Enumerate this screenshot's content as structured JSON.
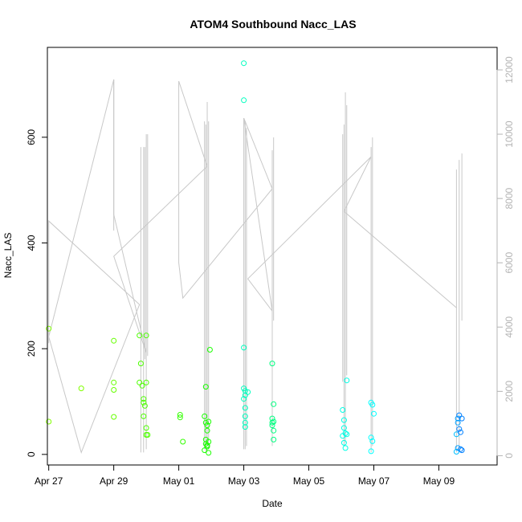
{
  "chart_data": {
    "type": "scatter",
    "title": "ATOM4 Southbound Nacc_LAS",
    "xlabel": "Date",
    "ylabel": "Nacc_LAS",
    "y2label": "",
    "xlim": [
      "2018-04-26T23:00",
      "2018-05-10T19:00"
    ],
    "x_ticks": [
      {
        "date": "2018-04-27",
        "label": "Apr 27"
      },
      {
        "date": "2018-04-29",
        "label": "Apr 29"
      },
      {
        "date": "2018-05-01",
        "label": "May 01"
      },
      {
        "date": "2018-05-03",
        "label": "May 03"
      },
      {
        "date": "2018-05-05",
        "label": "May 05"
      },
      {
        "date": "2018-05-07",
        "label": "May 07"
      },
      {
        "date": "2018-05-09",
        "label": "May 09"
      }
    ],
    "ylim": [
      -20,
      770
    ],
    "y_ticks": [
      0,
      200,
      400,
      600
    ],
    "y2lim": [
      -290,
      12700
    ],
    "y2_ticks": [
      0,
      2000,
      4000,
      6000,
      8000,
      10000,
      12000
    ],
    "grid": false,
    "legend": "none",
    "colors": {
      "trace": "#c8c8c8",
      "right_axis": "#b4b4b4",
      "early_points": "#80ff00",
      "mid_points": "#00ff40",
      "late_points": "#00ffff",
      "last_points": "#0080ff"
    },
    "points": [
      {
        "x": "2018-04-27T00:00",
        "y": 238,
        "color": "#80ff00"
      },
      {
        "x": "2018-04-27T00:00",
        "y": 62,
        "color": "#80ff00"
      },
      {
        "x": "2018-04-28T00:00",
        "y": 125,
        "color": "#80ff00"
      },
      {
        "x": "2018-04-29T00:00",
        "y": 215,
        "color": "#66ff00"
      },
      {
        "x": "2018-04-29T00:00",
        "y": 136,
        "color": "#66ff00"
      },
      {
        "x": "2018-04-29T00:00",
        "y": 122,
        "color": "#66ff00"
      },
      {
        "x": "2018-04-29T00:00",
        "y": 71,
        "color": "#66ff00"
      },
      {
        "x": "2018-04-29T19:00",
        "y": 225,
        "color": "#4dff00"
      },
      {
        "x": "2018-04-29T19:00",
        "y": 136,
        "color": "#4dff00"
      },
      {
        "x": "2018-04-29T20:00",
        "y": 172,
        "color": "#4dff00"
      },
      {
        "x": "2018-04-29T21:00",
        "y": 130,
        "color": "#4dff00"
      },
      {
        "x": "2018-04-29T22:00",
        "y": 105,
        "color": "#4dff00"
      },
      {
        "x": "2018-04-29T22:00",
        "y": 98,
        "color": "#4dff00"
      },
      {
        "x": "2018-04-29T22:00",
        "y": 72,
        "color": "#4dff00"
      },
      {
        "x": "2018-04-29T23:00",
        "y": 92,
        "color": "#4dff00"
      },
      {
        "x": "2018-04-30T00:00",
        "y": 225,
        "color": "#4dff00"
      },
      {
        "x": "2018-04-30T00:00",
        "y": 136,
        "color": "#4dff00"
      },
      {
        "x": "2018-04-30T00:00",
        "y": 50,
        "color": "#4dff00"
      },
      {
        "x": "2018-04-30T00:00",
        "y": 37,
        "color": "#4dff00"
      },
      {
        "x": "2018-04-30T01:00",
        "y": 37,
        "color": "#4dff00"
      },
      {
        "x": "2018-05-01T01:00",
        "y": 75,
        "color": "#33ff00"
      },
      {
        "x": "2018-05-01T01:00",
        "y": 70,
        "color": "#33ff00"
      },
      {
        "x": "2018-05-01T03:00",
        "y": 24,
        "color": "#33ff00"
      },
      {
        "x": "2018-05-01T19:00",
        "y": 72,
        "color": "#1aff00"
      },
      {
        "x": "2018-05-01T19:00",
        "y": 8,
        "color": "#1aff00"
      },
      {
        "x": "2018-05-01T20:00",
        "y": 128,
        "color": "#1aff00"
      },
      {
        "x": "2018-05-01T20:00",
        "y": 60,
        "color": "#1aff00"
      },
      {
        "x": "2018-05-01T20:00",
        "y": 28,
        "color": "#1aff00"
      },
      {
        "x": "2018-05-01T20:00",
        "y": 20,
        "color": "#1aff00"
      },
      {
        "x": "2018-05-01T21:00",
        "y": 55,
        "color": "#1aff00"
      },
      {
        "x": "2018-05-01T21:00",
        "y": 45,
        "color": "#1aff00"
      },
      {
        "x": "2018-05-01T21:00",
        "y": 17,
        "color": "#1aff00"
      },
      {
        "x": "2018-05-01T21:00",
        "y": 15,
        "color": "#1aff00"
      },
      {
        "x": "2018-05-01T22:00",
        "y": 62,
        "color": "#1aff00"
      },
      {
        "x": "2018-05-01T22:00",
        "y": 24,
        "color": "#1aff00"
      },
      {
        "x": "2018-05-01T22:00",
        "y": 3,
        "color": "#1aff00"
      },
      {
        "x": "2018-05-01T23:00",
        "y": 198,
        "color": "#1aff00"
      },
      {
        "x": "2018-05-03T00:00",
        "y": 740,
        "color": "#00ffbf"
      },
      {
        "x": "2018-05-03T00:00",
        "y": 670,
        "color": "#00ffbf"
      },
      {
        "x": "2018-05-03T00:00",
        "y": 202,
        "color": "#00ffbf"
      },
      {
        "x": "2018-05-03T00:00",
        "y": 125,
        "color": "#00ffbf"
      },
      {
        "x": "2018-05-03T00:00",
        "y": 105,
        "color": "#00ffbf"
      },
      {
        "x": "2018-05-03T01:00",
        "y": 120,
        "color": "#00ffbf"
      },
      {
        "x": "2018-05-03T01:00",
        "y": 112,
        "color": "#00ffbf"
      },
      {
        "x": "2018-05-03T01:00",
        "y": 88,
        "color": "#00ffbf"
      },
      {
        "x": "2018-05-03T01:00",
        "y": 72,
        "color": "#00ffbf"
      },
      {
        "x": "2018-05-03T01:00",
        "y": 60,
        "color": "#00ffbf"
      },
      {
        "x": "2018-05-03T01:00",
        "y": 52,
        "color": "#00ffbf"
      },
      {
        "x": "2018-05-03T03:00",
        "y": 118,
        "color": "#00ffbf"
      },
      {
        "x": "2018-05-03T21:00",
        "y": 172,
        "color": "#00ff80"
      },
      {
        "x": "2018-05-03T21:00",
        "y": 68,
        "color": "#00ff80"
      },
      {
        "x": "2018-05-03T21:00",
        "y": 60,
        "color": "#00ff80"
      },
      {
        "x": "2018-05-03T21:00",
        "y": 55,
        "color": "#00ff80"
      },
      {
        "x": "2018-05-03T22:00",
        "y": 95,
        "color": "#00ff80"
      },
      {
        "x": "2018-05-03T22:00",
        "y": 62,
        "color": "#00ff80"
      },
      {
        "x": "2018-05-03T22:00",
        "y": 45,
        "color": "#00ff80"
      },
      {
        "x": "2018-05-03T22:00",
        "y": 28,
        "color": "#00ff80"
      },
      {
        "x": "2018-05-06T01:00",
        "y": 84,
        "color": "#00ffe6"
      },
      {
        "x": "2018-05-06T01:00",
        "y": 35,
        "color": "#00ffe6"
      },
      {
        "x": "2018-05-06T02:00",
        "y": 65,
        "color": "#00ffe6"
      },
      {
        "x": "2018-05-06T02:00",
        "y": 50,
        "color": "#00ffe6"
      },
      {
        "x": "2018-05-06T02:00",
        "y": 22,
        "color": "#00ffe6"
      },
      {
        "x": "2018-05-06T03:00",
        "y": 40,
        "color": "#00ffe6"
      },
      {
        "x": "2018-05-06T03:00",
        "y": 12,
        "color": "#00ffe6"
      },
      {
        "x": "2018-05-06T04:00",
        "y": 140,
        "color": "#00ffe6"
      },
      {
        "x": "2018-05-06T04:00",
        "y": 38,
        "color": "#00ffe6"
      },
      {
        "x": "2018-05-06T22:00",
        "y": 98,
        "color": "#00ffff"
      },
      {
        "x": "2018-05-06T22:00",
        "y": 32,
        "color": "#00ffff"
      },
      {
        "x": "2018-05-06T22:00",
        "y": 6,
        "color": "#00ffff"
      },
      {
        "x": "2018-05-06T23:00",
        "y": 94,
        "color": "#00ffff"
      },
      {
        "x": "2018-05-06T23:00",
        "y": 25,
        "color": "#00ffff"
      },
      {
        "x": "2018-05-07T00:00",
        "y": 77,
        "color": "#00ffff"
      },
      {
        "x": "2018-05-09T13:00",
        "y": 38,
        "color": "#00bfff"
      },
      {
        "x": "2018-05-09T13:00",
        "y": 5,
        "color": "#00bfff"
      },
      {
        "x": "2018-05-09T14:00",
        "y": 68,
        "color": "#00a0ff"
      },
      {
        "x": "2018-05-09T14:00",
        "y": 60,
        "color": "#00a0ff"
      },
      {
        "x": "2018-05-09T14:00",
        "y": 12,
        "color": "#00a0ff"
      },
      {
        "x": "2018-05-09T15:00",
        "y": 74,
        "color": "#0080ff"
      },
      {
        "x": "2018-05-09T15:00",
        "y": 48,
        "color": "#0080ff"
      },
      {
        "x": "2018-05-09T16:00",
        "y": 42,
        "color": "#0080ff"
      },
      {
        "x": "2018-05-09T16:00",
        "y": 10,
        "color": "#0080ff"
      },
      {
        "x": "2018-05-09T17:00",
        "y": 68,
        "color": "#0080ff"
      },
      {
        "x": "2018-05-09T17:00",
        "y": 8,
        "color": "#0080ff"
      }
    ],
    "secondary_trace": [
      {
        "x": "2018-04-27T00:00",
        "y2": 3500
      },
      {
        "x": "2018-04-27T00:00",
        "y2": 7300
      },
      {
        "x": "2018-04-29T19:00",
        "y2": 4700
      },
      {
        "x": "2018-04-28T00:00",
        "y2": 100
      },
      {
        "x": "2018-04-27T00:00",
        "y2": 3700
      },
      {
        "x": "2018-04-29T00:00",
        "y2": 11700
      },
      {
        "x": "2018-04-29T00:00",
        "y2": 10200
      },
      {
        "x": "2018-04-29T00:00",
        "y2": 7500
      },
      {
        "x": "2018-04-30T00:00",
        "y2": 3200
      },
      {
        "x": "2018-04-29T00:00",
        "y2": 6200
      },
      {
        "x": "2018-05-01T21:00",
        "y2": 9000
      },
      {
        "x": "2018-05-01T00:00",
        "y2": 11650
      },
      {
        "x": "2018-05-01T00:00",
        "y2": 6000
      },
      {
        "x": "2018-05-01T03:00",
        "y2": 4900
      },
      {
        "x": "2018-05-03T21:00",
        "y2": 8300
      },
      {
        "x": "2018-05-03T00:00",
        "y2": 10500
      },
      {
        "x": "2018-05-03T21:00",
        "y2": 4500
      },
      {
        "x": "2018-05-03T03:00",
        "y2": 5500
      },
      {
        "x": "2018-05-06T22:00",
        "y2": 9300
      },
      {
        "x": "2018-05-06T02:00",
        "y2": 7600
      },
      {
        "x": "2018-05-09T13:00",
        "y2": 4600
      }
    ],
    "spikes": [
      {
        "x": "2018-04-29T00:00",
        "y2_min": 7000,
        "y2_max": 11700
      },
      {
        "x": "2018-04-29T20:00",
        "y2_min": 100,
        "y2_max": 9600
      },
      {
        "x": "2018-04-29T22:00",
        "y2_min": 100,
        "y2_max": 9600
      },
      {
        "x": "2018-04-29T23:00",
        "y2_min": 3000,
        "y2_max": 9600
      },
      {
        "x": "2018-04-30T00:00",
        "y2_min": 200,
        "y2_max": 10000
      },
      {
        "x": "2018-04-30T01:00",
        "y2_min": 3100,
        "y2_max": 10000
      },
      {
        "x": "2018-05-01T19:00",
        "y2_min": 200,
        "y2_max": 10400
      },
      {
        "x": "2018-05-01T20:00",
        "y2_min": 100,
        "y2_max": 10300
      },
      {
        "x": "2018-05-01T21:00",
        "y2_min": 300,
        "y2_max": 11000
      },
      {
        "x": "2018-05-01T22:00",
        "y2_min": 200,
        "y2_max": 10400
      },
      {
        "x": "2018-05-03T00:00",
        "y2_min": 200,
        "y2_max": 10500
      },
      {
        "x": "2018-05-03T01:00",
        "y2_min": 200,
        "y2_max": 10400
      },
      {
        "x": "2018-05-03T02:00",
        "y2_min": 300,
        "y2_max": 10200
      },
      {
        "x": "2018-05-03T21:00",
        "y2_min": 300,
        "y2_max": 9500
      },
      {
        "x": "2018-05-03T22:00",
        "y2_min": 4200,
        "y2_max": 9900
      },
      {
        "x": "2018-05-06T01:00",
        "y2_min": 2300,
        "y2_max": 10000
      },
      {
        "x": "2018-05-06T02:00",
        "y2_min": 300,
        "y2_max": 10300
      },
      {
        "x": "2018-05-06T03:00",
        "y2_min": 400,
        "y2_max": 11300
      },
      {
        "x": "2018-05-06T04:00",
        "y2_min": 2500,
        "y2_max": 10900
      },
      {
        "x": "2018-05-06T22:00",
        "y2_min": 100,
        "y2_max": 9600
      },
      {
        "x": "2018-05-06T23:00",
        "y2_min": 300,
        "y2_max": 9900
      },
      {
        "x": "2018-05-09T13:00",
        "y2_min": 100,
        "y2_max": 8900
      },
      {
        "x": "2018-05-09T15:00",
        "y2_min": 200,
        "y2_max": 9200
      },
      {
        "x": "2018-05-09T17:00",
        "y2_min": 4200,
        "y2_max": 9400
      }
    ]
  }
}
